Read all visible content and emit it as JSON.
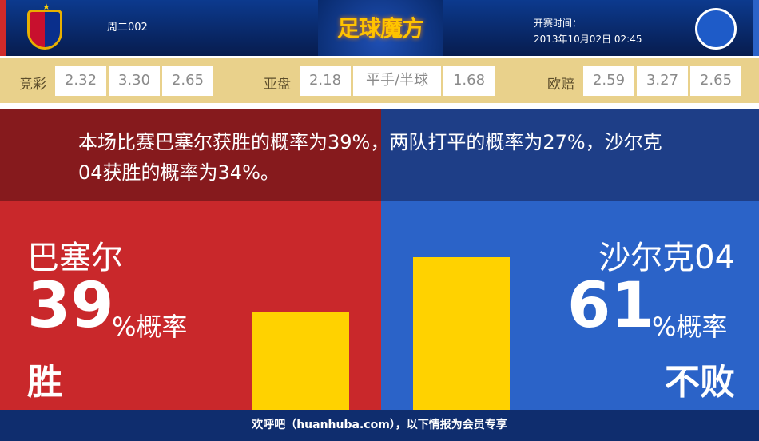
{
  "header": {
    "home_crest": "FCB",
    "away_crest": "S04",
    "match_no": "周二002",
    "logo": "足球魔方",
    "start_label": "开赛时间：",
    "start_time": "2013年10月02日 02:45"
  },
  "odds": {
    "jingcai": {
      "label": "竞彩",
      "values": [
        "2.32",
        "3.30",
        "2.65"
      ]
    },
    "yapan": {
      "label": "亚盘",
      "values": [
        "2.18",
        "平手/半球",
        "1.68"
      ]
    },
    "oupei": {
      "label": "欧赔",
      "values": [
        "2.59",
        "3.27",
        "2.65"
      ]
    }
  },
  "summary": "本场比赛巴塞尔获胜的概率为39%，两队打平的概率为27%，沙尔克04获胜的概率为34%。",
  "home": {
    "name": "巴塞尔",
    "percent": "39",
    "unit": "%概率",
    "result": "胜",
    "value": 39
  },
  "away": {
    "name": "沙尔克04",
    "percent": "61",
    "unit": "%概率",
    "result": "不败",
    "value": 61
  },
  "colors": {
    "home": "#c9282b",
    "away": "#2b63c8",
    "bar": "#ffd200"
  },
  "footer": "欢呼吧（huanhuba.com），以下情报为会员专享"
}
